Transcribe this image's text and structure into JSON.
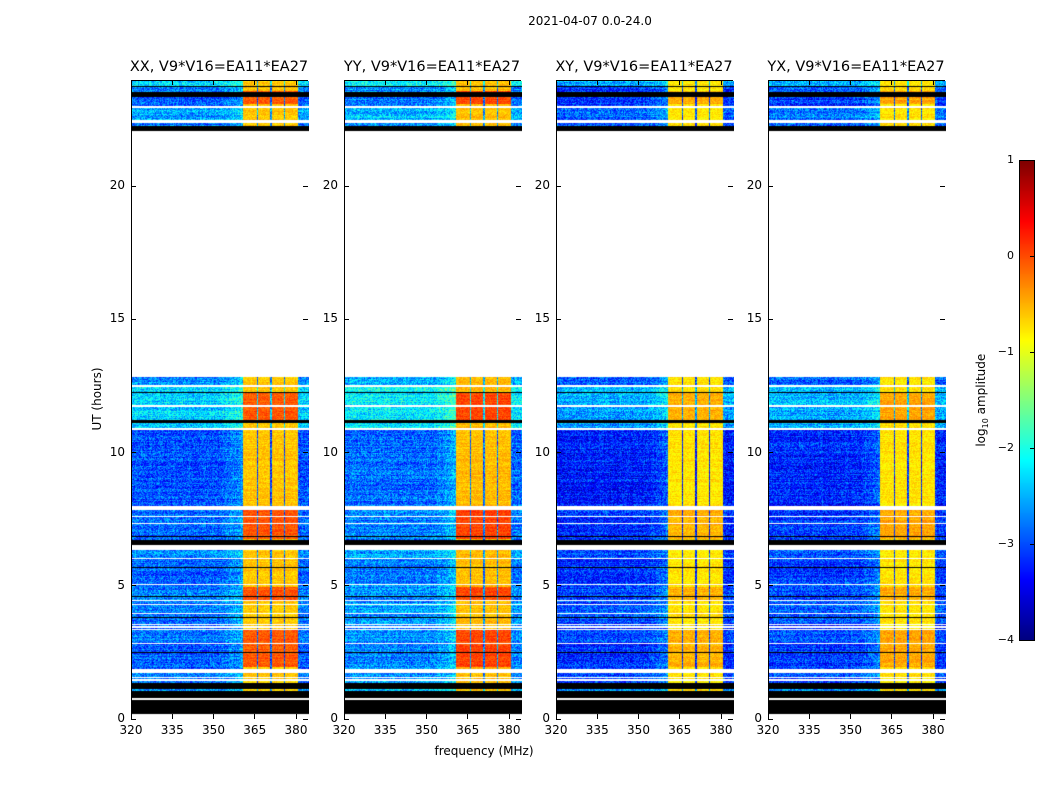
{
  "title": "2021-04-07 0.0-24.0",
  "chart_data": {
    "type": "heatmap",
    "title": "2021-04-07 0.0-24.0",
    "xlabel": "frequency (MHz)",
    "ylabel": "UT (hours)",
    "xlim": [
      320,
      384.4
    ],
    "ylim": [
      0,
      24
    ],
    "xticks": [
      "320",
      "335",
      "350",
      "365",
      "380"
    ],
    "xtick_values": [
      320,
      335,
      350,
      365,
      380
    ],
    "yticks": [
      "0",
      "5",
      "10",
      "15",
      "20"
    ],
    "ytick_values": [
      0,
      5,
      10,
      15,
      20
    ],
    "colormap": "jet",
    "colorbar": {
      "label_main": "log",
      "label_sub": "10",
      "label_rest": " amplitude",
      "range": [
        -4,
        1
      ],
      "ticks": [
        "1",
        "0",
        "−1",
        "−2",
        "−3",
        "−4"
      ],
      "tick_values": [
        1,
        0,
        -1,
        -2,
        -3,
        -4
      ]
    },
    "panels": [
      {
        "title": "XX, V9*V16=EA11*EA27",
        "bg_offset": 0.0,
        "rfi_level": -0.6,
        "hot_offset": 0.55
      },
      {
        "title": "YY, V9*V16=EA11*EA27",
        "bg_offset": 0.15,
        "rfi_level": -0.55,
        "hot_offset": 0.6
      },
      {
        "title": "XY, V9*V16=EA11*EA27",
        "bg_offset": -0.25,
        "rfi_level": -0.75,
        "hot_offset": 0.25
      },
      {
        "title": "YX, V9*V16=EA11*EA27",
        "bg_offset": -0.2,
        "rfi_level": -0.75,
        "hot_offset": 0.3
      }
    ],
    "data_segments_hours": [
      [
        1.09,
        1.15,
        -2.5
      ],
      [
        1.4,
        1.47,
        -2.7
      ],
      [
        1.53,
        1.59,
        -2.8
      ],
      [
        1.63,
        1.75,
        -2.8
      ],
      [
        1.92,
        2.84,
        -2.9
      ],
      [
        2.89,
        3.38,
        -2.8
      ],
      [
        3.42,
        3.47,
        -2.9
      ],
      [
        3.51,
        3.57,
        -2.9
      ],
      [
        3.62,
        3.96,
        -2.8
      ],
      [
        4.0,
        4.32,
        -2.7
      ],
      [
        4.36,
        4.47,
        -2.8
      ],
      [
        4.51,
        5.08,
        -2.8
      ],
      [
        5.12,
        6.03,
        -2.9
      ],
      [
        6.08,
        6.38,
        -2.7
      ],
      [
        6.77,
        7.34,
        -2.9
      ],
      [
        7.39,
        7.6,
        -2.9
      ],
      [
        7.66,
        7.88,
        -2.9
      ],
      [
        8.03,
        10.9,
        -3.0
      ],
      [
        10.96,
        11.75,
        -2.35
      ],
      [
        11.81,
        12.5,
        -2.3
      ],
      [
        12.56,
        12.87,
        -2.7
      ],
      [
        22.3,
        22.42,
        -2.8
      ],
      [
        22.5,
        22.95,
        -2.6
      ],
      [
        23.05,
        23.37,
        -2.9
      ],
      [
        23.55,
        23.77,
        -2.8
      ],
      [
        23.8,
        24.0,
        -2.3
      ]
    ],
    "flagged_segments_hours": [
      [
        0.22,
        0.76
      ],
      [
        0.82,
        1.09
      ],
      [
        1.15,
        1.4
      ],
      [
        2.52,
        2.55
      ],
      [
        3.82,
        3.85
      ],
      [
        4.62,
        4.65
      ],
      [
        5.24,
        5.27
      ],
      [
        5.7,
        5.73
      ],
      [
        6.57,
        6.77
      ],
      [
        6.87,
        6.9
      ],
      [
        7.15,
        7.18
      ],
      [
        9.59,
        9.62
      ],
      [
        10.12,
        10.15
      ],
      [
        11.15,
        11.25
      ],
      [
        12.28,
        12.32
      ],
      [
        22.1,
        22.3
      ],
      [
        23.37,
        23.55
      ],
      [
        23.77,
        23.8
      ]
    ],
    "rfi_bands_mhz": [
      [
        360.5,
        365.5
      ],
      [
        366.0,
        370.3
      ],
      [
        370.8,
        375.2
      ],
      [
        375.7,
        380.2
      ]
    ],
    "rfi_hot_hours": [
      [
        2.0,
        3.4
      ],
      [
        4.5,
        5.0
      ],
      [
        6.8,
        7.9
      ],
      [
        11.2,
        12.3
      ],
      [
        23.1,
        23.6
      ]
    ]
  }
}
